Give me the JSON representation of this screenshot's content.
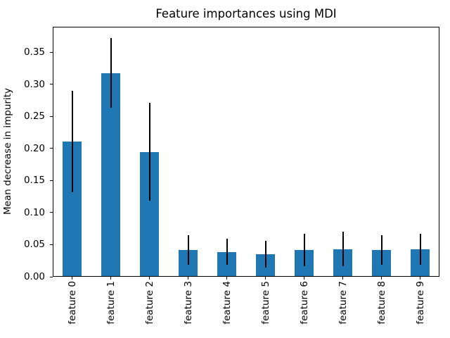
{
  "chart_data": {
    "type": "bar",
    "title": "Feature importances using MDI",
    "ylabel": "Mean decrease in impurity",
    "categories": [
      "feature 0",
      "feature 1",
      "feature 2",
      "feature 3",
      "feature 4",
      "feature 5",
      "feature 6",
      "feature 7",
      "feature 8",
      "feature 9"
    ],
    "values": [
      0.211,
      0.318,
      0.195,
      0.042,
      0.039,
      0.035,
      0.042,
      0.043,
      0.042,
      0.043
    ],
    "yerr": [
      0.079,
      0.054,
      0.076,
      0.023,
      0.02,
      0.021,
      0.025,
      0.027,
      0.023,
      0.024
    ],
    "ylim": [
      0,
      0.39
    ],
    "yticks": [
      0.0,
      0.05,
      0.1,
      0.15,
      0.2,
      0.25,
      0.3,
      0.35
    ],
    "ytick_labels": [
      "0.00",
      "0.05",
      "0.10",
      "0.15",
      "0.20",
      "0.25",
      "0.30",
      "0.35"
    ],
    "x_tick_rotation": 90,
    "bar_width_fraction": 0.5,
    "bar_color": "#1f77b4",
    "errorbar_color": "#000000",
    "grid": false,
    "legend": null
  }
}
